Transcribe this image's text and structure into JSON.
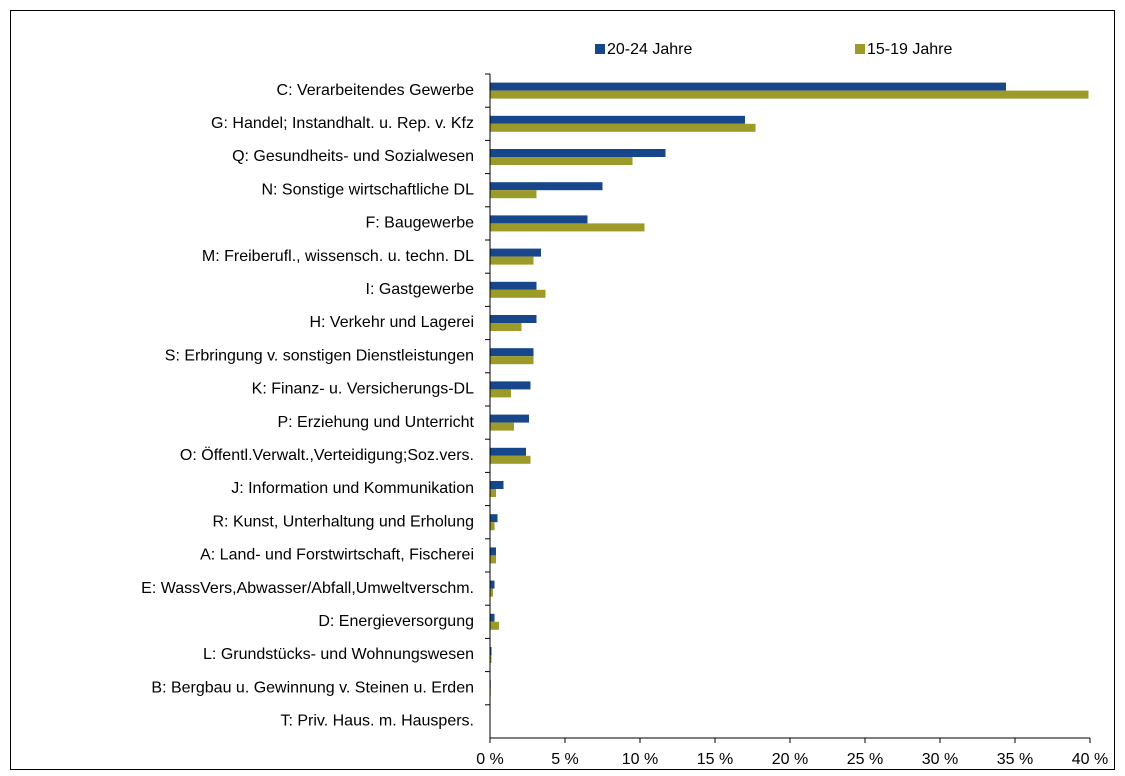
{
  "chart_data": {
    "type": "bar",
    "orientation": "horizontal",
    "categories": [
      "C: Verarbeitendes Gewerbe",
      "G: Handel; Instandhalt. u. Rep. v. Kfz",
      "Q: Gesundheits- und Sozialwesen",
      "N: Sonstige wirtschaftliche DL",
      "F: Baugewerbe",
      "M: Freiberufl., wissensch. u. techn. DL",
      "I: Gastgewerbe",
      "H: Verkehr und Lagerei",
      "S: Erbringung v. sonstigen Dienstleistungen",
      "K: Finanz- u. Versicherungs-DL",
      "P: Erziehung und Unterricht",
      "O: Öffentl.Verwalt.,Verteidigung;Soz.vers.",
      "J: Information und Kommunikation",
      "R: Kunst, Unterhaltung und Erholung",
      "A: Land- und Forstwirtschaft, Fischerei",
      "E: WassVers,Abwasser/Abfall,Umweltverschm.",
      "D: Energieversorgung",
      "L: Grundstücks- und Wohnungswesen",
      "B: Bergbau u. Gewinnung v. Steinen u. Erden",
      "T: Priv. Haus. m. Hauspers."
    ],
    "series": [
      {
        "name": "20-24 Jahre",
        "color": "#17468a",
        "values": [
          34.4,
          17.0,
          11.7,
          7.5,
          6.5,
          3.4,
          3.1,
          3.1,
          2.9,
          2.7,
          2.6,
          2.4,
          0.9,
          0.5,
          0.4,
          0.3,
          0.3,
          0.1,
          0.05,
          0.03
        ]
      },
      {
        "name": "15-19 Jahre",
        "color": "#9c9a28",
        "values": [
          39.9,
          17.7,
          9.5,
          3.1,
          10.3,
          2.9,
          3.7,
          2.1,
          2.9,
          1.4,
          1.6,
          2.7,
          0.4,
          0.3,
          0.4,
          0.2,
          0.6,
          0.1,
          0.05,
          0
        ]
      }
    ],
    "xlim": [
      0,
      40
    ],
    "xticks": [
      {
        "value": 0,
        "label": "0 %"
      },
      {
        "value": 5,
        "label": "5 %"
      },
      {
        "value": 10,
        "label": "10 %"
      },
      {
        "value": 15,
        "label": "15 %"
      },
      {
        "value": 20,
        "label": "20 %"
      },
      {
        "value": 25,
        "label": "25 %"
      },
      {
        "value": 30,
        "label": "30 %"
      },
      {
        "value": 35,
        "label": "35 %"
      },
      {
        "value": 40,
        "label": "40 %"
      }
    ],
    "legend": "top"
  }
}
